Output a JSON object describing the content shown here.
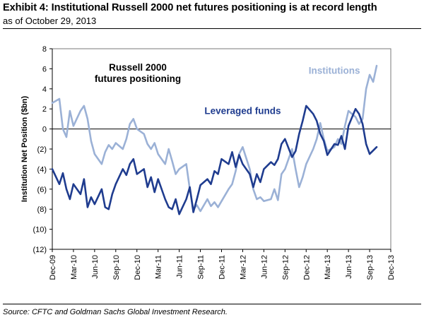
{
  "header": {
    "title": "Exhibit 4: Institutional Russell 2000 net futures positioning is at record length",
    "subtitle": "as of October 29, 2013"
  },
  "footer": {
    "source": "Source: CFTC and Goldman Sachs Global Investment Research."
  },
  "chart_data": {
    "type": "line",
    "title": "Russell 2000 futures positioning",
    "title_lines": [
      "Russell 2000",
      "futures positioning"
    ],
    "ylabel": "Institution Net Position ($bn)",
    "xlabel": "",
    "ylim": [
      -12,
      8
    ],
    "yticks": [
      8,
      6,
      4,
      2,
      0,
      -2,
      -4,
      -6,
      -8,
      -10,
      -12
    ],
    "ytick_labels": [
      "8",
      "6",
      "4",
      "2",
      "0",
      "(2)",
      "(4)",
      "(6)",
      "(8)",
      "(10)",
      "(12)"
    ],
    "xlim": [
      "2009-12",
      "2013-12"
    ],
    "xticks": [
      "2009-12",
      "2010-03",
      "2010-06",
      "2010-09",
      "2010-12",
      "2011-03",
      "2011-06",
      "2011-09",
      "2011-12",
      "2012-03",
      "2012-06",
      "2012-09",
      "2012-12",
      "2013-03",
      "2013-06",
      "2013-09",
      "2013-12"
    ],
    "xtick_labels": [
      "Dec-09",
      "Mar-10",
      "Jun-10",
      "Sep-10",
      "Dec-10",
      "Mar-11",
      "Jun-11",
      "Sep-11",
      "Dec-11",
      "Mar-12",
      "Jun-12",
      "Sep-12",
      "Dec-12",
      "Mar-13",
      "Jun-13",
      "Sep-13",
      "Dec-13"
    ],
    "grid": false,
    "zero_line": true,
    "series": [
      {
        "name": "Institutions",
        "color": "#9bb1d6",
        "points": [
          [
            "2009-12",
            2.6
          ],
          [
            "2010-01",
            3.0
          ],
          [
            "2010-01",
            0.0
          ],
          [
            "2010-02",
            -0.8
          ],
          [
            "2010-02",
            1.8
          ],
          [
            "2010-03",
            0.3
          ],
          [
            "2010-04",
            1.8
          ],
          [
            "2010-04",
            2.3
          ],
          [
            "2010-05",
            1.0
          ],
          [
            "2010-05",
            -1.2
          ],
          [
            "2010-06",
            -2.5
          ],
          [
            "2010-07",
            -3.5
          ],
          [
            "2010-07",
            -2.3
          ],
          [
            "2010-08",
            -1.6
          ],
          [
            "2010-08",
            -2.0
          ],
          [
            "2010-09",
            -1.4
          ],
          [
            "2010-10",
            -2.0
          ],
          [
            "2010-10",
            -1.0
          ],
          [
            "2010-11",
            0.5
          ],
          [
            "2010-11",
            1.0
          ],
          [
            "2010-12",
            0.0
          ],
          [
            "2011-01",
            -0.5
          ],
          [
            "2011-01",
            -1.5
          ],
          [
            "2011-02",
            -2.0
          ],
          [
            "2011-02",
            -1.4
          ],
          [
            "2011-03",
            -2.5
          ],
          [
            "2011-04",
            -3.5
          ],
          [
            "2011-04",
            -2.0
          ],
          [
            "2011-05",
            -3.2
          ],
          [
            "2011-05",
            -4.5
          ],
          [
            "2011-06",
            -4.0
          ],
          [
            "2011-07",
            -3.5
          ],
          [
            "2011-07",
            -6.0
          ],
          [
            "2011-08",
            -8.0
          ],
          [
            "2011-08",
            -7.6
          ],
          [
            "2011-09",
            -8.2
          ],
          [
            "2011-10",
            -7.0
          ],
          [
            "2011-10",
            -7.7
          ],
          [
            "2011-11",
            -7.3
          ],
          [
            "2011-11",
            -7.8
          ],
          [
            "2011-12",
            -7.2
          ],
          [
            "2012-01",
            -6.0
          ],
          [
            "2012-01",
            -5.5
          ],
          [
            "2012-02",
            -4.2
          ],
          [
            "2012-02",
            -2.5
          ],
          [
            "2012-03",
            -1.8
          ],
          [
            "2012-04",
            -4.0
          ],
          [
            "2012-04",
            -6.0
          ],
          [
            "2012-05",
            -7.0
          ],
          [
            "2012-05",
            -6.8
          ],
          [
            "2012-06",
            -7.2
          ],
          [
            "2012-07",
            -7.0
          ],
          [
            "2012-07",
            -6.0
          ],
          [
            "2012-08",
            -7.1
          ],
          [
            "2012-08",
            -4.5
          ],
          [
            "2012-09",
            -4.0
          ],
          [
            "2012-10",
            -2.0
          ],
          [
            "2012-10",
            -4.0
          ],
          [
            "2012-11",
            -5.8
          ],
          [
            "2012-11",
            -4.8
          ],
          [
            "2012-12",
            -3.5
          ],
          [
            "2013-01",
            -2.0
          ],
          [
            "2013-01",
            -1.0
          ],
          [
            "2013-02",
            0.6
          ],
          [
            "2013-02",
            -1.0
          ],
          [
            "2013-03",
            -2.2
          ],
          [
            "2013-04",
            -1.8
          ],
          [
            "2013-04",
            -1.0
          ],
          [
            "2013-05",
            -1.5
          ],
          [
            "2013-05",
            0.3
          ],
          [
            "2013-06",
            1.8
          ],
          [
            "2013-07",
            1.2
          ],
          [
            "2013-07",
            0.5
          ],
          [
            "2013-08",
            1.0
          ],
          [
            "2013-08",
            4.0
          ],
          [
            "2013-09",
            5.4
          ],
          [
            "2013-09",
            4.7
          ],
          [
            "2013-10",
            6.3
          ]
        ]
      },
      {
        "name": "Leveraged funds",
        "color": "#1f3c8f",
        "points": [
          [
            "2009-12",
            -4.0
          ],
          [
            "2010-01",
            -5.5
          ],
          [
            "2010-01",
            -4.4
          ],
          [
            "2010-02",
            -6.0
          ],
          [
            "2010-02",
            -7.0
          ],
          [
            "2010-03",
            -5.5
          ],
          [
            "2010-04",
            -6.5
          ],
          [
            "2010-04",
            -5.0
          ],
          [
            "2010-05",
            -7.8
          ],
          [
            "2010-05",
            -6.8
          ],
          [
            "2010-06",
            -7.5
          ],
          [
            "2010-07",
            -6.0
          ],
          [
            "2010-07",
            -7.8
          ],
          [
            "2010-08",
            -8.0
          ],
          [
            "2010-08",
            -6.5
          ],
          [
            "2010-09",
            -5.5
          ],
          [
            "2010-10",
            -4.0
          ],
          [
            "2010-10",
            -4.6
          ],
          [
            "2010-11",
            -3.5
          ],
          [
            "2010-11",
            -3.0
          ],
          [
            "2010-12",
            -4.5
          ],
          [
            "2011-01",
            -4.0
          ],
          [
            "2011-01",
            -5.8
          ],
          [
            "2011-02",
            -4.8
          ],
          [
            "2011-02",
            -6.3
          ],
          [
            "2011-03",
            -5.0
          ],
          [
            "2011-04",
            -7.0
          ],
          [
            "2011-04",
            -7.8
          ],
          [
            "2011-05",
            -8.0
          ],
          [
            "2011-05",
            -7.0
          ],
          [
            "2011-06",
            -8.5
          ],
          [
            "2011-07",
            -7.0
          ],
          [
            "2011-07",
            -5.8
          ],
          [
            "2011-08",
            -8.3
          ],
          [
            "2011-08",
            -7.0
          ],
          [
            "2011-09",
            -5.6
          ],
          [
            "2011-10",
            -5.0
          ],
          [
            "2011-10",
            -5.5
          ],
          [
            "2011-11",
            -4.2
          ],
          [
            "2011-11",
            -4.5
          ],
          [
            "2011-12",
            -3.0
          ],
          [
            "2012-01",
            -3.5
          ],
          [
            "2012-01",
            -2.3
          ],
          [
            "2012-02",
            -3.8
          ],
          [
            "2012-02",
            -2.6
          ],
          [
            "2012-03",
            -3.5
          ],
          [
            "2012-04",
            -4.5
          ],
          [
            "2012-04",
            -5.8
          ],
          [
            "2012-05",
            -4.5
          ],
          [
            "2012-05",
            -5.3
          ],
          [
            "2012-06",
            -4.0
          ],
          [
            "2012-07",
            -3.3
          ],
          [
            "2012-07",
            -3.6
          ],
          [
            "2012-08",
            -3.0
          ],
          [
            "2012-08",
            -1.5
          ],
          [
            "2012-09",
            -1.0
          ],
          [
            "2012-10",
            -2.8
          ],
          [
            "2012-10",
            -2.2
          ],
          [
            "2012-11",
            -0.5
          ],
          [
            "2012-11",
            0.8
          ],
          [
            "2012-12",
            2.3
          ],
          [
            "2013-01",
            1.5
          ],
          [
            "2013-01",
            0.8
          ],
          [
            "2013-02",
            -0.5
          ],
          [
            "2013-02",
            -1.2
          ],
          [
            "2013-03",
            -2.6
          ],
          [
            "2013-04",
            -1.5
          ],
          [
            "2013-04",
            -1.6
          ],
          [
            "2013-05",
            -0.7
          ],
          [
            "2013-05",
            -2.0
          ],
          [
            "2013-06",
            0.3
          ],
          [
            "2013-07",
            2.0
          ],
          [
            "2013-07",
            1.5
          ],
          [
            "2013-08",
            0.5
          ],
          [
            "2013-08",
            -1.5
          ],
          [
            "2013-09",
            -2.5
          ],
          [
            "2013-10",
            -1.8
          ]
        ]
      }
    ],
    "annotations": [
      {
        "text": "Institutions",
        "series": "Institutions",
        "x": "2013-04",
        "y": 5.5,
        "color": "#9bb1d6"
      },
      {
        "text": "Leveraged funds",
        "series": "Leveraged funds",
        "x": "2012-03",
        "y": 1.5,
        "color": "#1f3c8f"
      }
    ]
  }
}
